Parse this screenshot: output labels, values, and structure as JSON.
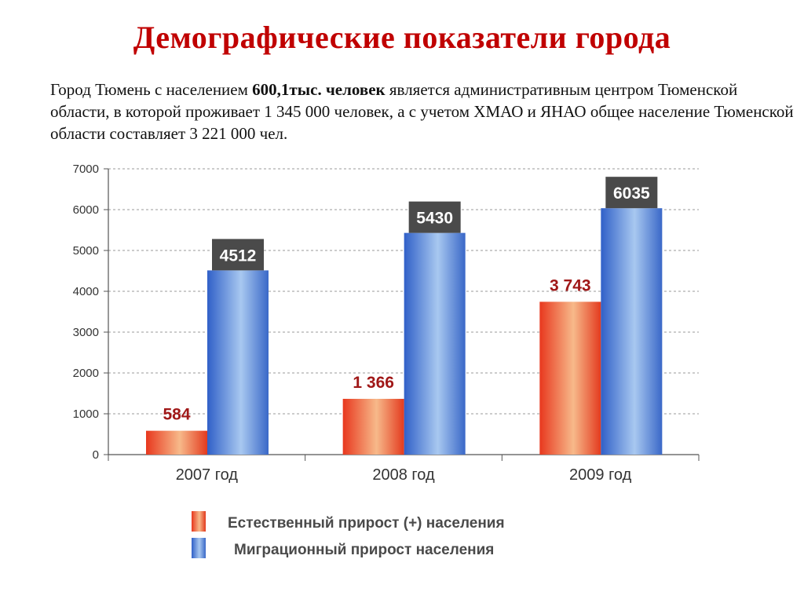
{
  "header": {
    "title": "Демографические показатели города"
  },
  "intro": {
    "part1": "Город Тюмень с населением ",
    "bold": "600,1тыс. человек",
    "part2": " является административным центром Тюменской области, в которой проживает 1 345 000 человек, а с учетом ХМАО и ЯНАО общее население Тюменской области составляет 3 221 000 чел."
  },
  "colors": {
    "title": "#c00000",
    "natural": "#f06030",
    "migration": "#5a8ad6",
    "label_box": "#4a4a4a",
    "natural_label": "#a01818"
  },
  "chart_data": {
    "type": "bar",
    "categories": [
      "2007 год",
      "2008 год",
      "2009 год"
    ],
    "series": [
      {
        "name": "Естественный прирост (+) населения",
        "values": [
          584,
          1366,
          3743
        ],
        "labels": [
          "584",
          "1 366",
          "3 743"
        ]
      },
      {
        "name": "Миграционный прирост населения",
        "values": [
          4512,
          5430,
          6035
        ],
        "labels": [
          "4512",
          "5430",
          "6035"
        ]
      }
    ],
    "ylim": [
      0,
      7000
    ],
    "yticks": [
      0,
      1000,
      2000,
      3000,
      4000,
      5000,
      6000,
      7000
    ],
    "grid": true,
    "legend_position": "bottom"
  }
}
